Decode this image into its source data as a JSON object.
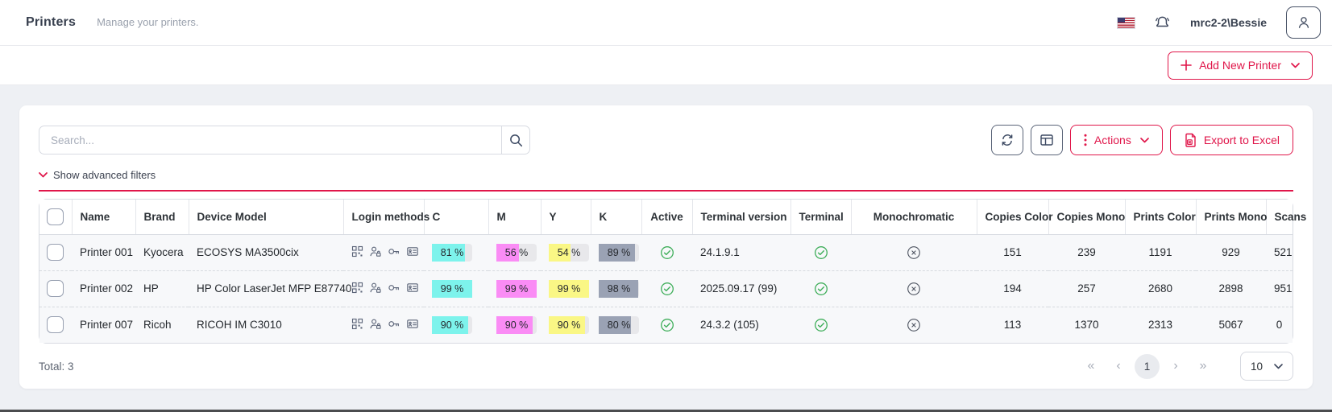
{
  "header": {
    "title": "Printers",
    "subtitle": "Manage your printers.",
    "username": "mrc2-2\\Bessie"
  },
  "toolbar": {
    "add_new_printer": "Add New Printer"
  },
  "card": {
    "search_placeholder": "Search...",
    "actions_label": "Actions",
    "export_label": "Export to Excel",
    "filters_label": "Show advanced filters"
  },
  "table": {
    "columns": [
      "Name",
      "Brand",
      "Device Model",
      "Login methods",
      "C",
      "M",
      "Y",
      "K",
      "Active",
      "Terminal version",
      "Terminal",
      "Monochromatic",
      "Copies Color",
      "Copies Mono",
      "Prints Color",
      "Prints Mono",
      "Scans"
    ],
    "login_method_icons": [
      "qr-code-icon",
      "user-lock-icon",
      "key-icon",
      "id-card-icon"
    ],
    "rows": [
      {
        "name": "Printer 001",
        "brand": "Kyocera",
        "model": "ECOSYS MA3500cix",
        "c": 81,
        "m": 56,
        "y": 54,
        "k": 89,
        "active": true,
        "terminal_version": "24.1.9.1",
        "terminal": true,
        "monochromatic": false,
        "copies_color": 151,
        "copies_mono": 239,
        "prints_color": 1191,
        "prints_mono": 929,
        "scans": 521
      },
      {
        "name": "Printer 002",
        "brand": "HP",
        "model": "HP Color LaserJet MFP E87740",
        "c": 99,
        "m": 99,
        "y": 99,
        "k": 98,
        "active": true,
        "terminal_version": "2025.09.17 (99)",
        "terminal": true,
        "monochromatic": false,
        "copies_color": 194,
        "copies_mono": 257,
        "prints_color": 2680,
        "prints_mono": 2898,
        "scans": 951
      },
      {
        "name": "Printer 007",
        "brand": "Ricoh",
        "model": "RICOH IM C3010",
        "c": 90,
        "m": 90,
        "y": 90,
        "k": 80,
        "active": true,
        "terminal_version": "24.3.2 (105)",
        "terminal": true,
        "monochromatic": false,
        "copies_color": 113,
        "copies_mono": 1370,
        "prints_color": 2313,
        "prints_mono": 5067,
        "scans": 0
      }
    ],
    "percent_suffix": " %"
  },
  "footer": {
    "total_label": "Total: 3",
    "current_page": "1",
    "page_size": "10",
    "pagination_icons": {
      "first": "«",
      "prev": "‹",
      "next": "›",
      "last": "»"
    }
  },
  "colors": {
    "accent": "#e0164a",
    "cyan": "#7df3ec",
    "magenta": "#fa8cf5",
    "yellow": "#faf785",
    "black": "#9aa2b4",
    "pill_bg": "#e8e8eb",
    "success": "#3fae5a",
    "muted_icon": "#4d5360"
  }
}
